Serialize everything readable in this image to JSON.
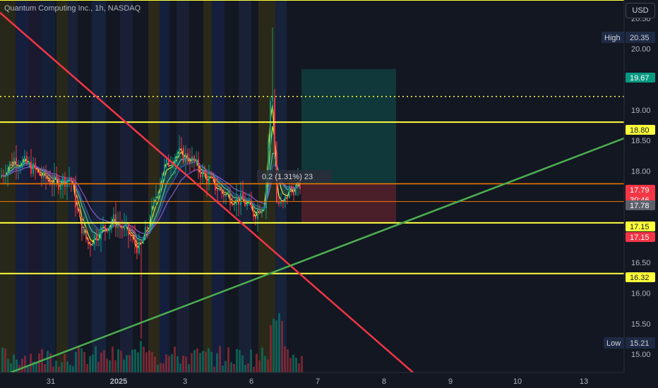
{
  "header": {
    "symbol_title": "Quantum Computing Inc., 1h, NASDAQ",
    "currency_button": "USD"
  },
  "chart_data": {
    "type": "candlestick",
    "ylim": [
      14.8,
      20.7
    ],
    "y_ticks": [
      "20.50",
      "20.00",
      "19.50",
      "19.00",
      "18.50",
      "18.00",
      "16.50",
      "16.00",
      "15.50",
      "15.00"
    ],
    "x_ticks": [
      {
        "label": "31",
        "bold": false
      },
      {
        "label": "2025",
        "bold": true
      },
      {
        "label": "3",
        "bold": false
      },
      {
        "label": "6",
        "bold": false
      },
      {
        "label": "7",
        "bold": false
      },
      {
        "label": "8",
        "bold": false
      },
      {
        "label": "9",
        "bold": false
      },
      {
        "label": "10",
        "bold": false
      },
      {
        "label": "13",
        "bold": false
      }
    ],
    "high": {
      "label": "High",
      "value": "20.35"
    },
    "low": {
      "label": "Low",
      "value": "15.21"
    },
    "price_labels": [
      {
        "value": "19.67",
        "price": 19.67,
        "color": "#089981",
        "text_color": "#ffffff"
      },
      {
        "value": "18.80",
        "price": 18.8,
        "color": "#ffff3b",
        "text_color": "#131722"
      },
      {
        "value": "17.79",
        "price": 17.79,
        "color": "#f23645",
        "text_color": "#ffffff",
        "sub": "30:46"
      },
      {
        "value": "17.78",
        "price": 17.78,
        "color": "#5d606b",
        "text_color": "#ffffff"
      },
      {
        "value": "17.15",
        "price": 17.15,
        "color": "#ffff3b",
        "text_color": "#131722"
      },
      {
        "value": "17.15",
        "price": 17.15,
        "color": "#f23645",
        "text_color": "#ffffff"
      },
      {
        "value": "16.32",
        "price": 16.32,
        "color": "#ffff3b",
        "text_color": "#131722"
      }
    ],
    "horizontal_levels": [
      20.8,
      18.8,
      17.15,
      16.32
    ],
    "dotted_level": 19.22,
    "orange_levels": [
      17.79,
      17.5
    ],
    "position_tool": {
      "entry": 17.79,
      "target": 19.67,
      "stop": 17.15
    },
    "position_label": "0.2 (1.31%) 23",
    "trendlines": [
      {
        "color": "#f23645",
        "from": [
          0,
          20.55
        ],
        "to": [
          340,
          14.8
        ]
      },
      {
        "color": "#4caf50",
        "from": [
          0,
          14.85
        ],
        "to": [
          500,
          18.55
        ]
      }
    ],
    "series_colors": {
      "up": "#089981",
      "down": "#f23645"
    }
  }
}
